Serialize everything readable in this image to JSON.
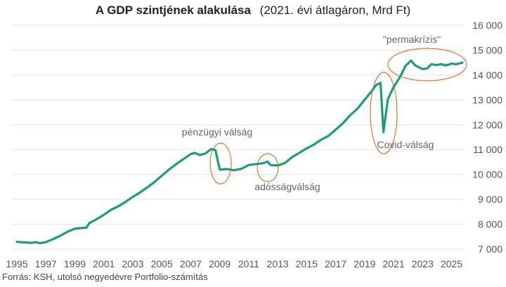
{
  "chart_data": {
    "type": "line",
    "title": "A GDP szintjének alakulása",
    "subtitle": "(2021. évi átlagáron, Mrd Ft)",
    "source": "Forrás: KSH, utolsó negyedévre Portfolio-számítás",
    "xlabel": "",
    "ylabel": "",
    "xlim": [
      1995,
      2025.75
    ],
    "ylim": [
      7000,
      16000
    ],
    "grid": true,
    "x_ticks": [
      1995,
      1997,
      1999,
      2001,
      2003,
      2005,
      2007,
      2009,
      2011,
      2013,
      2015,
      2017,
      2019,
      2021,
      2023,
      2025
    ],
    "x_tick_labels": [
      "1995",
      "1997",
      "1999",
      "2001",
      "2003",
      "2005",
      "2007",
      "2009",
      "2011",
      "2013",
      "2015",
      "2017",
      "2019",
      "2021",
      "2023",
      "2025"
    ],
    "y_ticks": [
      7000,
      8000,
      9000,
      10000,
      11000,
      12000,
      13000,
      14000,
      15000,
      16000
    ],
    "y_tick_labels": [
      "7 000",
      "8 000",
      "9 000",
      "10 000",
      "11 000",
      "12 000",
      "13 000",
      "14 000",
      "15 000",
      "16 000"
    ],
    "line_color": "#1a9e76",
    "annotation_color": "#e8742c",
    "series": [
      {
        "values": [
          [
            1995.0,
            7290
          ],
          [
            1995.5,
            7270
          ],
          [
            1996.0,
            7250
          ],
          [
            1996.3,
            7280
          ],
          [
            1996.6,
            7240
          ],
          [
            1997.0,
            7280
          ],
          [
            1997.5,
            7400
          ],
          [
            1998.0,
            7540
          ],
          [
            1998.5,
            7700
          ],
          [
            1999.0,
            7820
          ],
          [
            1999.5,
            7850
          ],
          [
            1999.8,
            7860
          ],
          [
            2000.0,
            8050
          ],
          [
            2000.5,
            8200
          ],
          [
            2001.0,
            8380
          ],
          [
            2001.5,
            8580
          ],
          [
            2002.0,
            8720
          ],
          [
            2002.5,
            8900
          ],
          [
            2003.0,
            9100
          ],
          [
            2003.5,
            9280
          ],
          [
            2004.0,
            9480
          ],
          [
            2004.5,
            9700
          ],
          [
            2005.0,
            9950
          ],
          [
            2005.5,
            10200
          ],
          [
            2006.0,
            10420
          ],
          [
            2006.5,
            10620
          ],
          [
            2007.0,
            10820
          ],
          [
            2007.3,
            10870
          ],
          [
            2007.6,
            10780
          ],
          [
            2008.0,
            10840
          ],
          [
            2008.4,
            11020
          ],
          [
            2008.7,
            10980
          ],
          [
            2009.0,
            10200
          ],
          [
            2009.5,
            10220
          ],
          [
            2010.0,
            10170
          ],
          [
            2010.5,
            10230
          ],
          [
            2011.0,
            10380
          ],
          [
            2011.5,
            10420
          ],
          [
            2012.0,
            10450
          ],
          [
            2012.3,
            10520
          ],
          [
            2012.5,
            10380
          ],
          [
            2013.0,
            10360
          ],
          [
            2013.5,
            10460
          ],
          [
            2014.0,
            10700
          ],
          [
            2014.5,
            10870
          ],
          [
            2015.0,
            11050
          ],
          [
            2015.5,
            11200
          ],
          [
            2016.0,
            11400
          ],
          [
            2016.5,
            11550
          ],
          [
            2017.0,
            11800
          ],
          [
            2017.5,
            12060
          ],
          [
            2018.0,
            12380
          ],
          [
            2018.5,
            12640
          ],
          [
            2019.0,
            13000
          ],
          [
            2019.5,
            13360
          ],
          [
            2019.8,
            13600
          ],
          [
            2020.1,
            13680
          ],
          [
            2020.3,
            11700
          ],
          [
            2020.6,
            13020
          ],
          [
            2021.0,
            13520
          ],
          [
            2021.5,
            13980
          ],
          [
            2021.8,
            14350
          ],
          [
            2022.2,
            14580
          ],
          [
            2022.5,
            14380
          ],
          [
            2023.0,
            14240
          ],
          [
            2023.3,
            14260
          ],
          [
            2023.6,
            14430
          ],
          [
            2024.0,
            14400
          ],
          [
            2024.3,
            14440
          ],
          [
            2024.6,
            14380
          ],
          [
            2025.0,
            14460
          ],
          [
            2025.3,
            14430
          ],
          [
            2025.75,
            14500
          ]
        ]
      }
    ],
    "annotations": [
      {
        "label": "pénzügyi válság",
        "x": 2008.5,
        "y": 11150
      },
      {
        "label": "adósságválság",
        "x": 2012.5,
        "y": 9550
      },
      {
        "label": "Covid-válság",
        "x": 2020.5,
        "y": 11900
      },
      {
        "label": "\"permakrízis\"",
        "x": 2021.5,
        "y": 15450
      }
    ]
  }
}
